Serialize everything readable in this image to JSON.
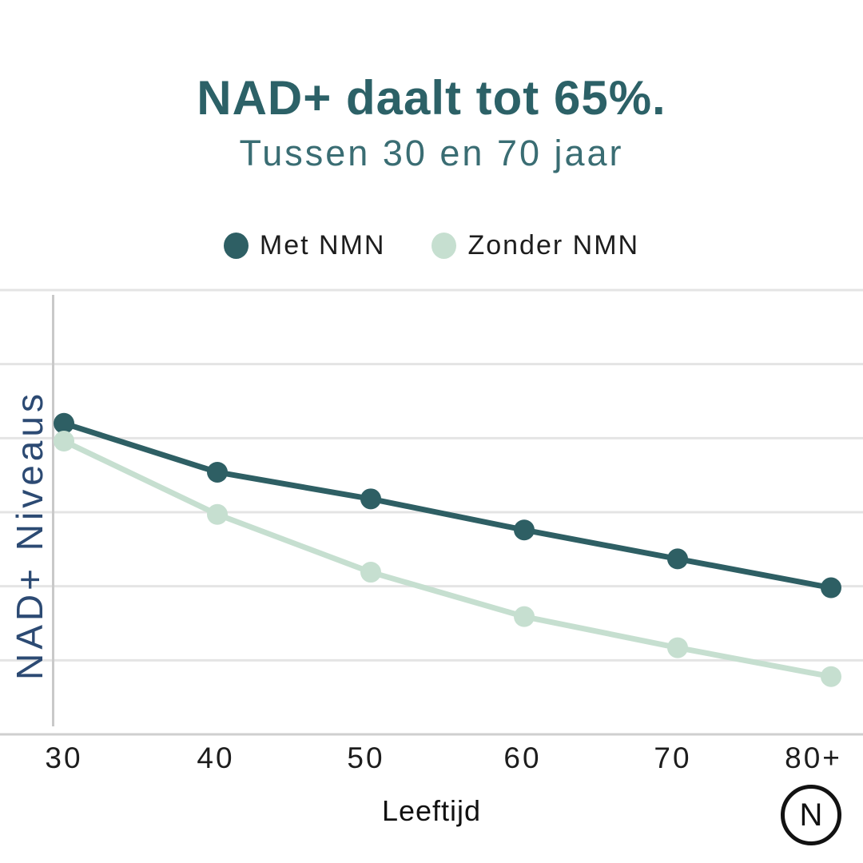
{
  "header": {
    "title": "NAD+ daalt tot 65%.",
    "subtitle": "Tussen 30 en 70 jaar"
  },
  "legend": [
    {
      "label": "Met NMN",
      "color": "#2e5f64"
    },
    {
      "label": "Zonder NMN",
      "color": "#c6dfd0"
    }
  ],
  "chart_data": {
    "type": "line",
    "categories": [
      "30",
      "40",
      "50",
      "60",
      "70",
      "80+"
    ],
    "series": [
      {
        "name": "Met NMN",
        "color": "#2e5f64",
        "values": [
          70,
          59,
          53,
          46,
          39.5,
          33
        ]
      },
      {
        "name": "Zonder NMN",
        "color": "#c6dfd0",
        "values": [
          66,
          49.5,
          36.5,
          26.5,
          19.5,
          13
        ]
      }
    ],
    "title": "NAD+ daalt tot 65%.",
    "subtitle": "Tussen 30 en 70 jaar",
    "xlabel": "Leeftijd",
    "ylabel": "NAD+ Niveaus",
    "ylim": [
      0,
      100
    ],
    "grid": "horizontal",
    "gridline_count": 7,
    "legend_position": "top"
  },
  "footer": {
    "logo_letter": "N"
  },
  "colors": {
    "title": "#2c6167",
    "subtitle": "#3a6d73",
    "y_axis_label": "#2c4a73",
    "body_text": "#1d1d1d",
    "grid": "#e4e4e4",
    "axis_line": "#cfcfcf",
    "vertical_axis": "#c9c9c9",
    "series_dark": "#2e5f64",
    "series_light": "#c6dfd0",
    "background": "#ffffff"
  }
}
